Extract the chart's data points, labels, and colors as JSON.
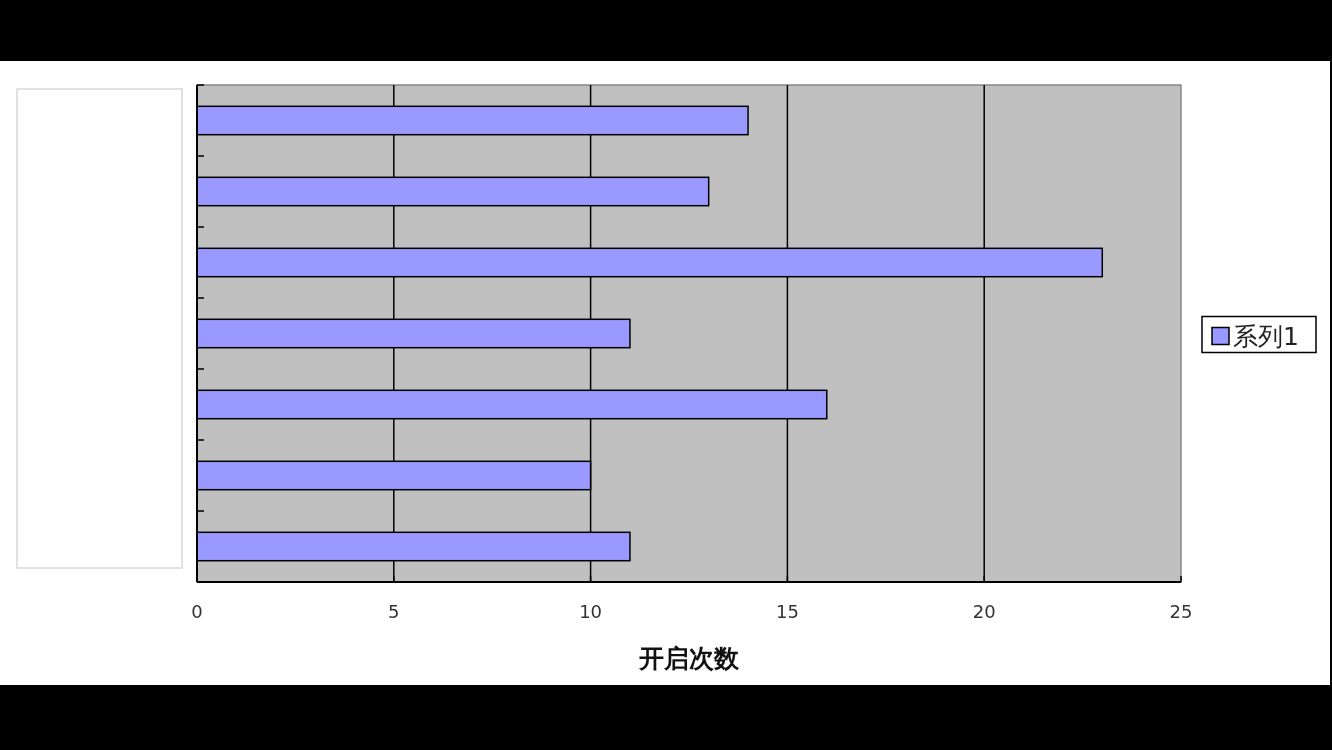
{
  "chart_data": {
    "type": "bar",
    "orientation": "horizontal",
    "categories": [
      null,
      null,
      null,
      null,
      null,
      null,
      null
    ],
    "series": [
      {
        "name": "系列1",
        "color": "#9999ff",
        "values": [
          14,
          13,
          23,
          11,
          16,
          10,
          11
        ]
      }
    ],
    "xlabel": "开启次数",
    "xlim": [
      0,
      25
    ],
    "xticks": [
      0,
      5,
      10,
      15,
      20,
      25
    ],
    "grid": "x",
    "legend": "right"
  }
}
